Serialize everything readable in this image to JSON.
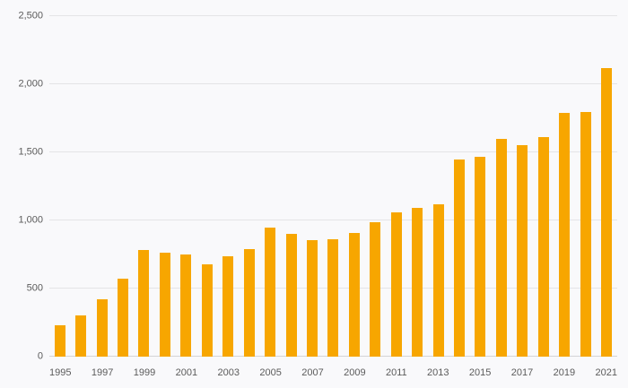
{
  "chart_data": {
    "type": "bar",
    "title": "",
    "xlabel": "",
    "ylabel": "",
    "categories": [
      "1995",
      "1996",
      "1997",
      "1998",
      "1999",
      "2000",
      "2001",
      "2002",
      "2003",
      "2004",
      "2005",
      "2006",
      "2007",
      "2008",
      "2009",
      "2010",
      "2011",
      "2012",
      "2013",
      "2014",
      "2015",
      "2016",
      "2017",
      "2018",
      "2019",
      "2020",
      "2021"
    ],
    "values": [
      230,
      300,
      420,
      570,
      780,
      760,
      750,
      680,
      740,
      790,
      950,
      900,
      855,
      860,
      905,
      990,
      1060,
      1095,
      1120,
      1450,
      1465,
      1600,
      1550,
      1610,
      1790,
      1795,
      2120
    ],
    "ylim": [
      0,
      2500
    ],
    "yticks": [
      0,
      500,
      1000,
      1500,
      2000,
      2500
    ],
    "ytick_labels": [
      "0",
      "500",
      "1,000",
      "1,500",
      "2,000",
      "2,500"
    ],
    "xtick_labels_shown": [
      "1995",
      "1997",
      "1999",
      "2001",
      "2003",
      "2005",
      "2007",
      "2009",
      "2011",
      "2013",
      "2015",
      "2017",
      "2019",
      "2021"
    ],
    "legend_position": "none",
    "grid": "horizontal",
    "colors": {
      "bar": "#F7A600",
      "background": "#f9f9fb",
      "gridline": "#e4e4e6",
      "baseline": "#d4d4d6",
      "axis_text": "#5b5b5b"
    }
  }
}
